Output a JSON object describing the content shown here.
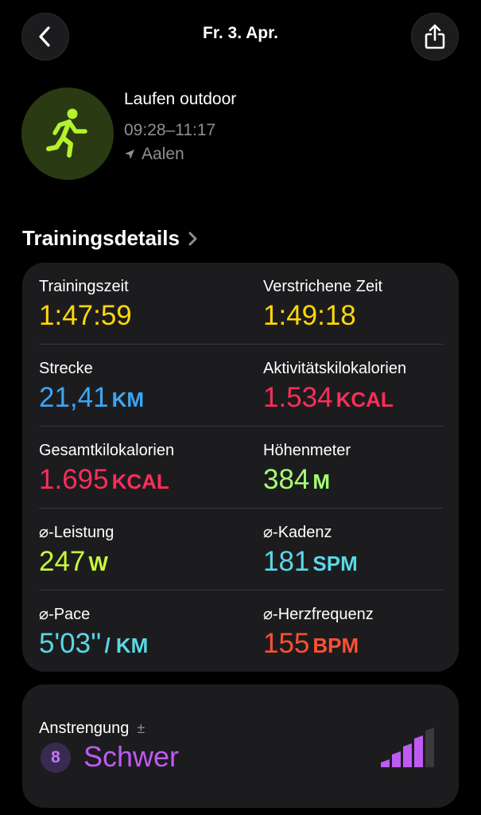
{
  "header": {
    "title": "Fr. 3. Apr.",
    "back_icon": "chevron-left-icon",
    "share_icon": "share-icon"
  },
  "workout": {
    "icon": "running-figure-icon",
    "name": "Laufen outdoor",
    "time_range": "09:28–11:17",
    "location": "Aalen",
    "location_icon": "location-arrow-icon"
  },
  "section": {
    "title": "Trainingsdetails"
  },
  "metrics": [
    {
      "label": "Trainingszeit",
      "value": "1:47:59",
      "unit": "",
      "color": "#fed70a"
    },
    {
      "label": "Verstrichene Zeit",
      "value": "1:49:18",
      "unit": "",
      "color": "#fed70a"
    },
    {
      "label": "Strecke",
      "value": "21,41",
      "unit": "KM",
      "color": "#3aa6f5"
    },
    {
      "label": "Aktivitätskilokalorien",
      "value": "1.534",
      "unit": "KCAL",
      "color": "#fa2e58"
    },
    {
      "label": "Gesamtkilokalorien",
      "value": "1.695",
      "unit": "KCAL",
      "color": "#fa2e58"
    },
    {
      "label": "Höhenmeter",
      "value": "384",
      "unit": "M",
      "color": "#a6ff75"
    },
    {
      "label": "⌀-Leistung",
      "value": "247",
      "unit": "W",
      "color": "#c8f73e"
    },
    {
      "label": "⌀-Kadenz",
      "value": "181",
      "unit": "SPM",
      "color": "#5ad8e6"
    },
    {
      "label": "⌀-Pace",
      "value": "5'03''",
      "unit": "/ KM",
      "color": "#5ad8e6"
    },
    {
      "label": "⌀-Herzfrequenz",
      "value": "155",
      "unit": "BPM",
      "color": "#ff5034"
    }
  ],
  "effort": {
    "label": "Anstrengung",
    "label_symbol": "±",
    "level": "8",
    "text": "Schwer",
    "color": "#bf5af2",
    "bars_filled": 4,
    "bars_total": 5
  }
}
